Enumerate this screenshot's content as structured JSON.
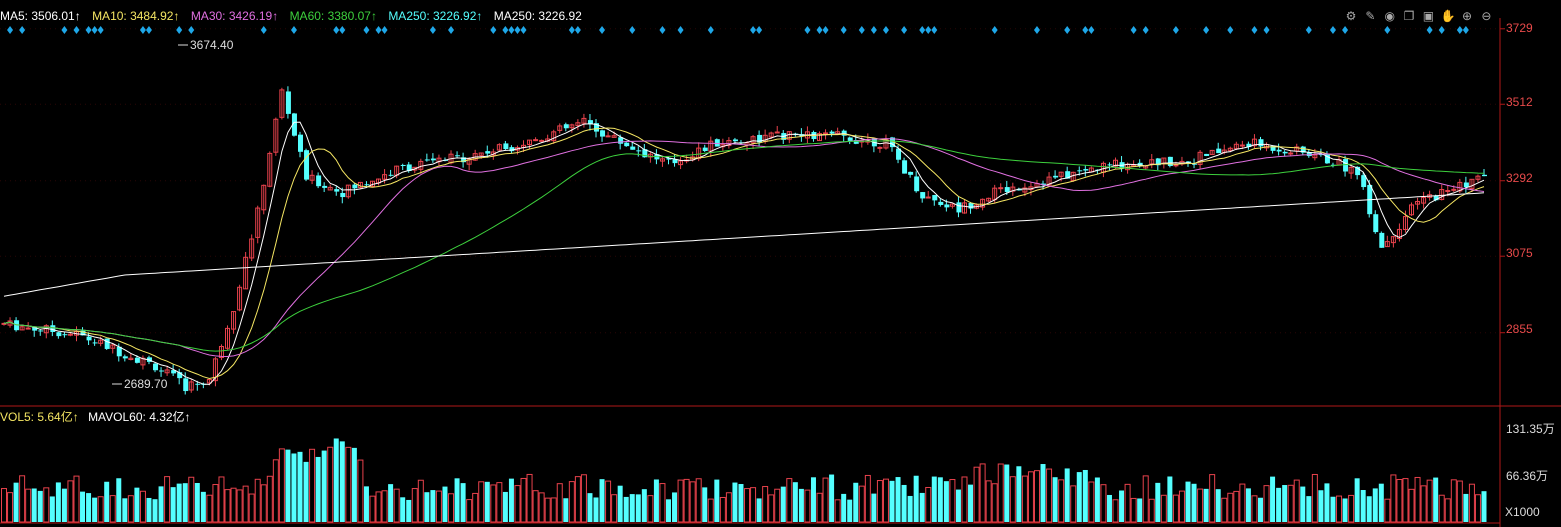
{
  "ma_legend": {
    "ma5": "MA5: 3506.01↑",
    "ma10": "MA10: 3484.92↑",
    "ma30": "MA30: 3426.19↑",
    "ma60": "MA60: 3380.07↑",
    "ma250a": "MA250: 3226.92↑",
    "ma250b": "MA250: 3226.92"
  },
  "vol_legend": {
    "vol5": "VOL5: 5.64亿↑",
    "mavol60": "MAVOL60: 4.32亿↑"
  },
  "colors": {
    "up": "#e8424c",
    "down": "#54ffff",
    "ma5": "#ffffff",
    "ma10": "#f5e663",
    "ma30": "#e070e0",
    "ma60": "#3dd03d",
    "ma250": "#ffffff",
    "axis": "#b01818",
    "signal": "#1ea7e8"
  },
  "chart_data": {
    "type": "candlestick",
    "price_axis": {
      "ticks": [
        3729,
        3512,
        3292,
        3075,
        2855
      ],
      "ylim": [
        2650,
        3760
      ]
    },
    "volume_axis": {
      "ticks": [
        "131.35万",
        "66.36万"
      ],
      "unit": "X1000"
    },
    "annotations": {
      "high": "3674.40",
      "low": "2689.70"
    },
    "ohlc": [],
    "volume": []
  },
  "toolbar_icons": [
    "gear-icon",
    "pen-icon",
    "eye-icon",
    "copy-icon",
    "save-icon",
    "hand-icon",
    "zoom-in-icon",
    "zoom-out-icon"
  ]
}
